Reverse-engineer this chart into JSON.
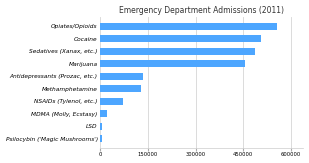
{
  "title": "Emergency Department Admissions (2011)",
  "categories": [
    "Opiates/Opioids",
    "Cocaine",
    "Sedatives (Xanax, etc.)",
    "Marijuana",
    "Antidepressants (Prozac, etc.)",
    "Methamphetamine",
    "NSAIDs (Tylenol, etc.)",
    "MDMA (Molly, Ecstasy)",
    "LSD",
    "Psilocybin ('Magic Mushrooms')"
  ],
  "values": [
    558000,
    505000,
    487000,
    456000,
    135000,
    128000,
    72000,
    22000,
    5000,
    5500
  ],
  "bar_color": "#4da6ff",
  "background_color": "#ffffff",
  "xlim": [
    0,
    640000
  ],
  "xticks": [
    0,
    150000,
    300000,
    450000,
    600000
  ],
  "xtick_labels": [
    "0",
    "150000",
    "300000",
    "450000",
    "600000"
  ],
  "title_fontsize": 5.5,
  "label_fontsize": 4.2,
  "tick_fontsize": 3.8,
  "bar_height": 0.55
}
